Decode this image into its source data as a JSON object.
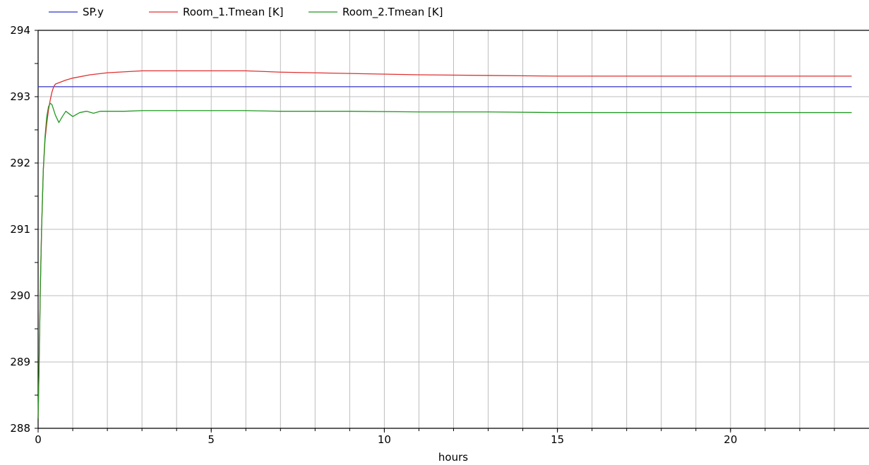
{
  "chart_data": {
    "type": "line",
    "title": "",
    "xlabel": "hours",
    "ylabel": "",
    "xlim": [
      0,
      24
    ],
    "ylim": [
      288,
      294
    ],
    "x_ticks": [
      0,
      5,
      10,
      15,
      20
    ],
    "x_minor_step": 1,
    "y_ticks": [
      288,
      289,
      290,
      291,
      292,
      293,
      294
    ],
    "y_minor_step": 0.5,
    "grid": true,
    "legend_position": "top-left",
    "series": [
      {
        "name": "SP.y",
        "color": "#3333cc",
        "x": [
          0,
          23.5
        ],
        "y": [
          293.15,
          293.15
        ]
      },
      {
        "name": "Room_1.Tmean [K]",
        "color": "#e03030",
        "x": [
          0,
          0.03,
          0.06,
          0.1,
          0.15,
          0.2,
          0.25,
          0.3,
          0.35,
          0.4,
          0.45,
          0.5,
          0.6,
          0.8,
          1.0,
          1.5,
          2.0,
          3.0,
          4.0,
          5.0,
          6.0,
          7.0,
          9.0,
          11.0,
          13.0,
          15.0,
          18.0,
          21.0,
          23.5
        ],
        "y": [
          288.15,
          289.0,
          290.0,
          291.0,
          291.9,
          292.35,
          292.6,
          292.8,
          292.95,
          293.07,
          293.15,
          293.19,
          293.21,
          293.25,
          293.28,
          293.33,
          293.36,
          293.39,
          293.39,
          293.39,
          293.39,
          293.37,
          293.35,
          293.33,
          293.32,
          293.31,
          293.31,
          293.31,
          293.31
        ]
      },
      {
        "name": "Room_2.Tmean [K]",
        "color": "#229922",
        "x": [
          0,
          0.03,
          0.06,
          0.1,
          0.15,
          0.2,
          0.25,
          0.3,
          0.35,
          0.4,
          0.5,
          0.6,
          0.7,
          0.8,
          0.9,
          1.0,
          1.2,
          1.4,
          1.6,
          1.8,
          2.0,
          2.5,
          3.0,
          4.0,
          5.0,
          6.0,
          7.0,
          9.0,
          11.0,
          13.0,
          15.0,
          18.0,
          21.0,
          23.5
        ],
        "y": [
          288.15,
          289.0,
          290.0,
          291.0,
          291.9,
          292.4,
          292.7,
          292.85,
          292.9,
          292.88,
          292.72,
          292.61,
          292.7,
          292.78,
          292.74,
          292.7,
          292.76,
          292.78,
          292.75,
          292.78,
          292.78,
          292.78,
          292.79,
          292.79,
          292.79,
          292.79,
          292.78,
          292.78,
          292.77,
          292.77,
          292.76,
          292.76,
          292.76,
          292.76
        ]
      }
    ]
  }
}
